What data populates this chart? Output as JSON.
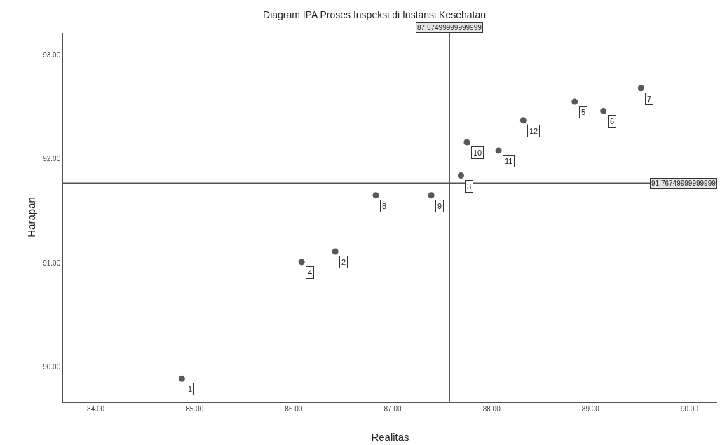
{
  "chart_data": {
    "type": "scatter",
    "title": "Diagram IPA Proses Inspeksi di Instansi Kesehatan",
    "xlabel": "Realitas",
    "ylabel": "Harapan",
    "x": [
      84.87,
      86.42,
      87.69,
      86.08,
      88.84,
      89.13,
      89.51,
      86.83,
      87.39,
      87.75,
      88.07,
      88.32
    ],
    "series": [
      {
        "color": "#595959",
        "values": [
          89.89,
          91.11,
          91.84,
          91.01,
          92.55,
          92.46,
          92.68,
          91.65,
          91.65,
          92.16,
          92.08,
          92.37
        ]
      }
    ],
    "annotations": [
      {
        "text": "1",
        "x": 84.87,
        "y": 89.89
      },
      {
        "text": "2",
        "x": 86.42,
        "y": 91.11
      },
      {
        "text": "3",
        "x": 87.69,
        "y": 91.84
      },
      {
        "text": "4",
        "x": 86.08,
        "y": 91.01
      },
      {
        "text": "5",
        "x": 88.84,
        "y": 92.55
      },
      {
        "text": "6",
        "x": 89.13,
        "y": 92.46
      },
      {
        "text": "7",
        "x": 89.51,
        "y": 92.68
      },
      {
        "text": "8",
        "x": 86.83,
        "y": 91.65
      },
      {
        "text": "9",
        "x": 87.39,
        "y": 91.65
      },
      {
        "text": "10",
        "x": 87.75,
        "y": 92.16
      },
      {
        "text": "11",
        "x": 88.07,
        "y": 92.08
      },
      {
        "text": "12",
        "x": 88.32,
        "y": 92.37
      }
    ],
    "ref_lines": [
      {
        "axis": "x",
        "value": 87.57499999999999,
        "label": "87.57499999999999"
      },
      {
        "axis": "y",
        "value": 91.76749999999998,
        "label": "91.76749999999999"
      }
    ],
    "xlim": [
      83.67,
      90.28
    ],
    "ylim": [
      89.67,
      93.21
    ],
    "xticks": [
      {
        "value": 84,
        "label": "84.00"
      },
      {
        "value": 85,
        "label": "85.00"
      },
      {
        "value": 86,
        "label": "86.00"
      },
      {
        "value": 87,
        "label": "87.00"
      },
      {
        "value": 88,
        "label": "88.00"
      },
      {
        "value": 89,
        "label": "89.00"
      },
      {
        "value": 90,
        "label": "90.00"
      }
    ],
    "yticks": [
      {
        "value": 90,
        "label": "90.00"
      },
      {
        "value": 91,
        "label": "91.00"
      },
      {
        "value": 92,
        "label": "92.00"
      },
      {
        "value": 93,
        "label": "93.00"
      }
    ],
    "grid": false,
    "marker": "circle"
  }
}
